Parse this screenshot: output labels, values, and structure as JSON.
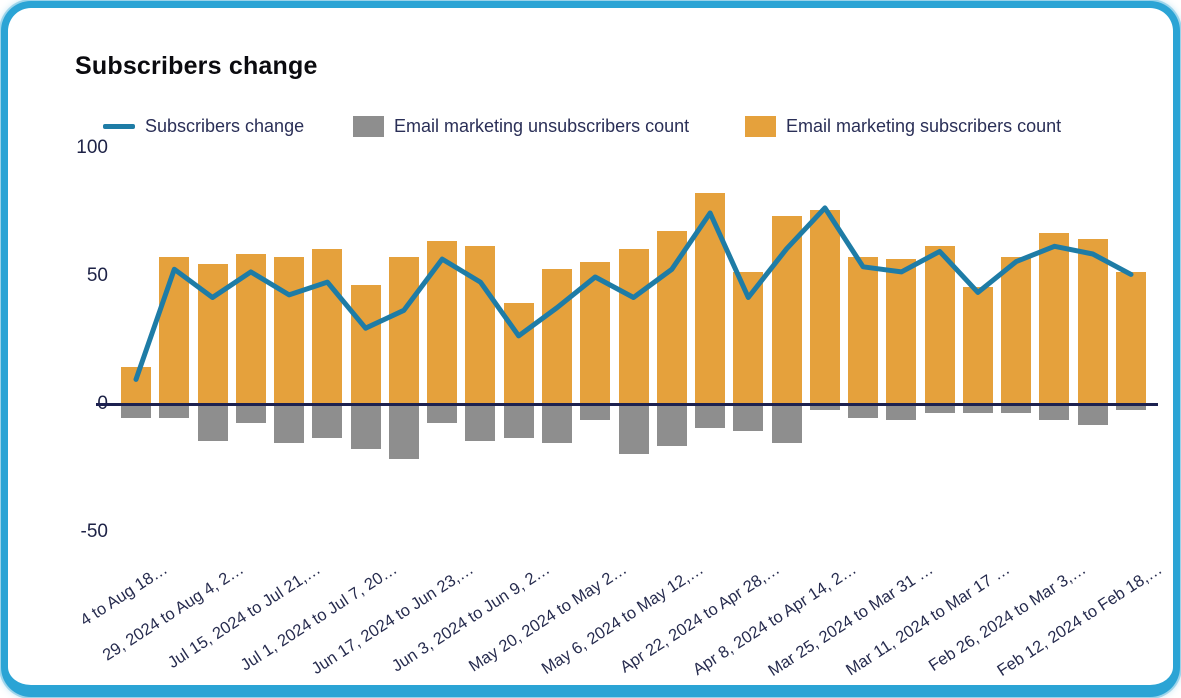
{
  "title": "Subscribers change",
  "colors": {
    "card_border": "#2ba4d5",
    "axis_zero_line": "#1c2150",
    "line_series": "#1e7ca6",
    "unsubscribers_bar": "#8e8e8e",
    "subscribers_bar": "#e5a13c",
    "axis_text": "#1d2246",
    "legend_text": "#2a2f57"
  },
  "chart_data": {
    "type": "combo-bar-line",
    "title": "Subscribers change",
    "grid": false,
    "legend_position": "top",
    "ylim": [
      -50,
      100
    ],
    "yticks": [
      100,
      50,
      0,
      -50
    ],
    "n_bars": 27,
    "x_tick_bar_indices": [
      0,
      2,
      4,
      6,
      8,
      10,
      12,
      14,
      16,
      18,
      20,
      22,
      24,
      26
    ],
    "x_tick_labels": [
      "4 to Aug 18…",
      "29, 2024 to Aug 4, 2…",
      "Jul 15, 2024 to Jul 21,…",
      "Jul 1, 2024 to Jul 7, 20…",
      "Jun 17, 2024 to Jun 23,…",
      "Jun 3, 2024 to Jun 9, 2…",
      "May 20, 2024 to May 2…",
      "May 6, 2024 to May 12,…",
      "Apr 22, 2024 to Apr 28,…",
      "Apr 8, 2024 to Apr 14, 2…",
      "Mar 25, 2024 to Mar 31 …",
      "Mar 11, 2024 to Mar 17 …",
      "Feb 26, 2024 to Mar 3,…",
      "Feb 12, 2024 to Feb 18,…"
    ],
    "series": [
      {
        "name": "Subscribers change",
        "type": "line",
        "color": "#1e7ca6",
        "values": [
          10,
          53,
          42,
          52,
          43,
          48,
          30,
          37,
          57,
          48,
          27,
          38,
          50,
          42,
          53,
          75,
          42,
          61,
          77,
          54,
          52,
          60,
          44,
          56,
          62,
          59,
          51
        ]
      },
      {
        "name": "Email marketing unsubscribers count",
        "type": "bar",
        "color": "#8e8e8e",
        "values": [
          -5,
          -5,
          -14,
          -7,
          -15,
          -13,
          -17,
          -21,
          -7,
          -14,
          -13,
          -15,
          -6,
          -19,
          -16,
          -9,
          -10,
          -15,
          -2,
          -5,
          -6,
          -3,
          -3,
          -3,
          -6,
          -8,
          -2
        ]
      },
      {
        "name": "Email marketing subscribers count",
        "type": "bar",
        "color": "#e5a13c",
        "values": [
          15,
          58,
          55,
          59,
          58,
          61,
          47,
          58,
          64,
          62,
          40,
          53,
          56,
          61,
          68,
          83,
          52,
          74,
          76,
          58,
          57,
          62,
          46,
          58,
          67,
          65,
          52
        ]
      }
    ]
  }
}
